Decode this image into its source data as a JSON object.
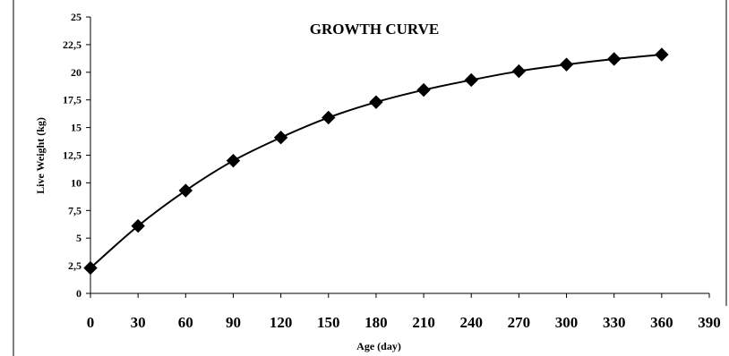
{
  "chart_data": {
    "type": "line",
    "title": "GROWTH CURVE",
    "xlabel": "Age (day)",
    "ylabel": "Live Weight (kg)",
    "xlim": [
      0,
      390
    ],
    "ylim": [
      0,
      25
    ],
    "x_ticks": [
      "0",
      "30",
      "60",
      "90",
      "120",
      "150",
      "180",
      "210",
      "240",
      "270",
      "300",
      "330",
      "360",
      "390"
    ],
    "y_ticks": [
      "0",
      "2,5",
      "5",
      "7,5",
      "10",
      "12,5",
      "15",
      "17,5",
      "20",
      "22,5",
      "25"
    ],
    "grid": false,
    "legend": "none",
    "series": [
      {
        "marker": "diamond",
        "color": "#000000",
        "x": [
          0,
          30,
          60,
          90,
          120,
          150,
          180,
          210,
          240,
          270,
          300,
          330,
          360
        ],
        "y": [
          2.3,
          6.1,
          9.3,
          12.0,
          14.1,
          15.9,
          17.3,
          18.4,
          19.3,
          20.1,
          20.7,
          21.2,
          21.6
        ]
      }
    ]
  }
}
